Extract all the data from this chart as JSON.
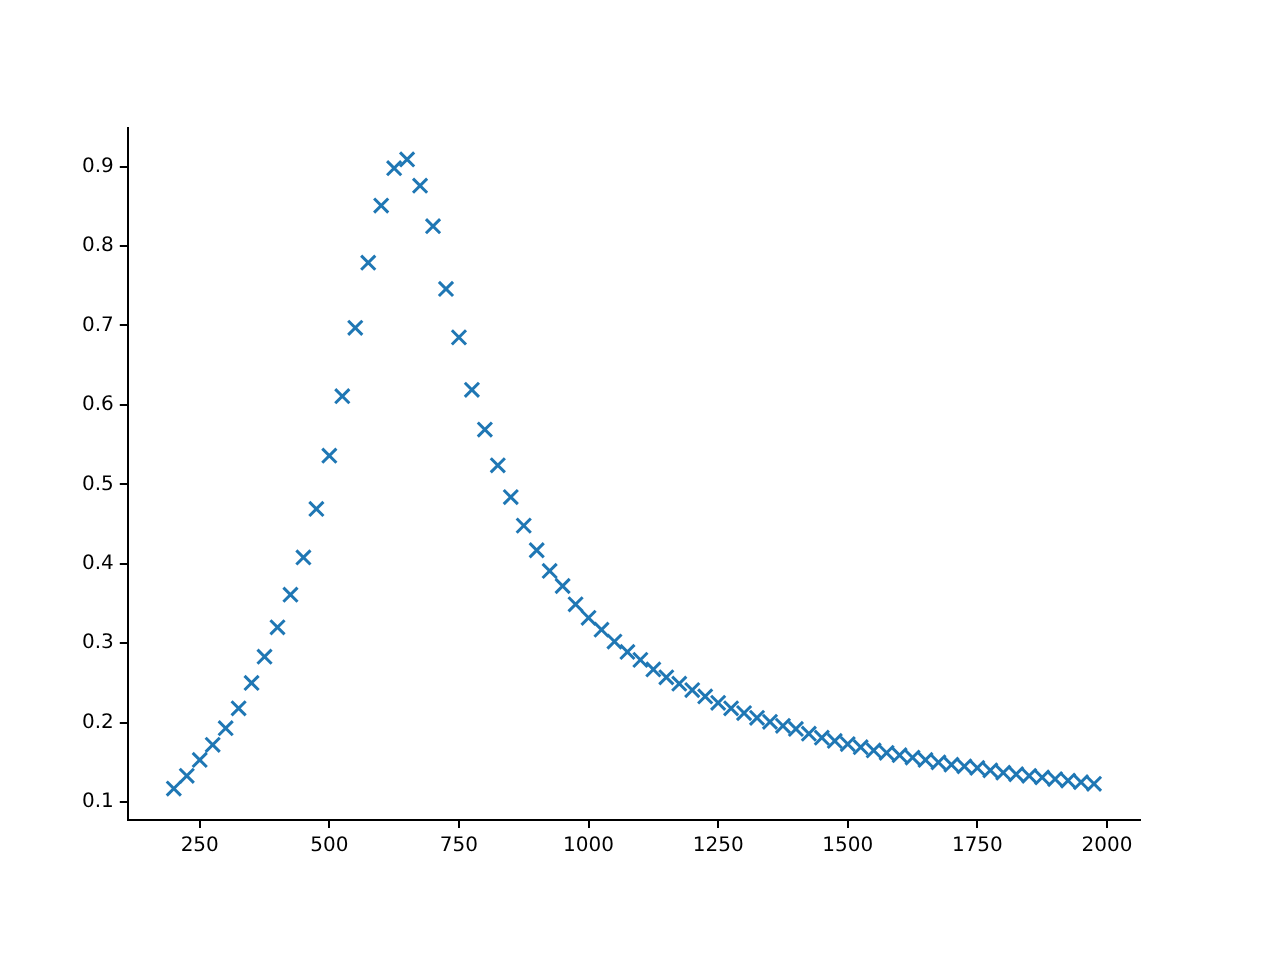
{
  "chart_data": {
    "type": "scatter",
    "marker": "cross",
    "grid": false,
    "legend": false,
    "x": [
      200,
      225,
      250,
      275,
      300,
      325,
      350,
      375,
      400,
      425,
      450,
      475,
      500,
      525,
      550,
      575,
      600,
      625,
      650,
      675,
      700,
      725,
      750,
      775,
      800,
      825,
      850,
      875,
      900,
      925,
      950,
      975,
      1000,
      1025,
      1050,
      1075,
      1100,
      1125,
      1150,
      1175,
      1200,
      1225,
      1250,
      1275,
      1300,
      1325,
      1350,
      1375,
      1400,
      1425,
      1450,
      1475,
      1500,
      1525,
      1550,
      1575,
      1600,
      1625,
      1650,
      1675,
      1700,
      1725,
      1750,
      1775,
      1800,
      1825,
      1850,
      1875,
      1900,
      1925,
      1950,
      1975
    ],
    "series": [
      {
        "color": "#1f77b4",
        "values": [
          0.117,
          0.133,
          0.153,
          0.172,
          0.193,
          0.218,
          0.25,
          0.283,
          0.32,
          0.361,
          0.408,
          0.469,
          0.536,
          0.611,
          0.697,
          0.779,
          0.851,
          0.898,
          0.909,
          0.876,
          0.825,
          0.746,
          0.685,
          0.619,
          0.569,
          0.524,
          0.484,
          0.448,
          0.417,
          0.391,
          0.372,
          0.349,
          0.332,
          0.317,
          0.302,
          0.289,
          0.279,
          0.267,
          0.257,
          0.249,
          0.241,
          0.233,
          0.225,
          0.218,
          0.212,
          0.206,
          0.201,
          0.196,
          0.192,
          0.186,
          0.181,
          0.177,
          0.173,
          0.169,
          0.165,
          0.162,
          0.159,
          0.156,
          0.153,
          0.15,
          0.147,
          0.145,
          0.143,
          0.14,
          0.137,
          0.135,
          0.133,
          0.131,
          0.129,
          0.127,
          0.125,
          0.123
        ]
      }
    ],
    "xlim": [
      111.25,
      2063.75
    ],
    "xticks": [
      250,
      500,
      750,
      1000,
      1250,
      1500,
      1750,
      2000
    ],
    "ylim": [
      0.0774,
      0.9486
    ],
    "yticks": [
      0.1,
      0.2,
      0.3,
      0.4,
      0.5,
      0.6,
      0.7,
      0.8,
      0.9
    ]
  }
}
